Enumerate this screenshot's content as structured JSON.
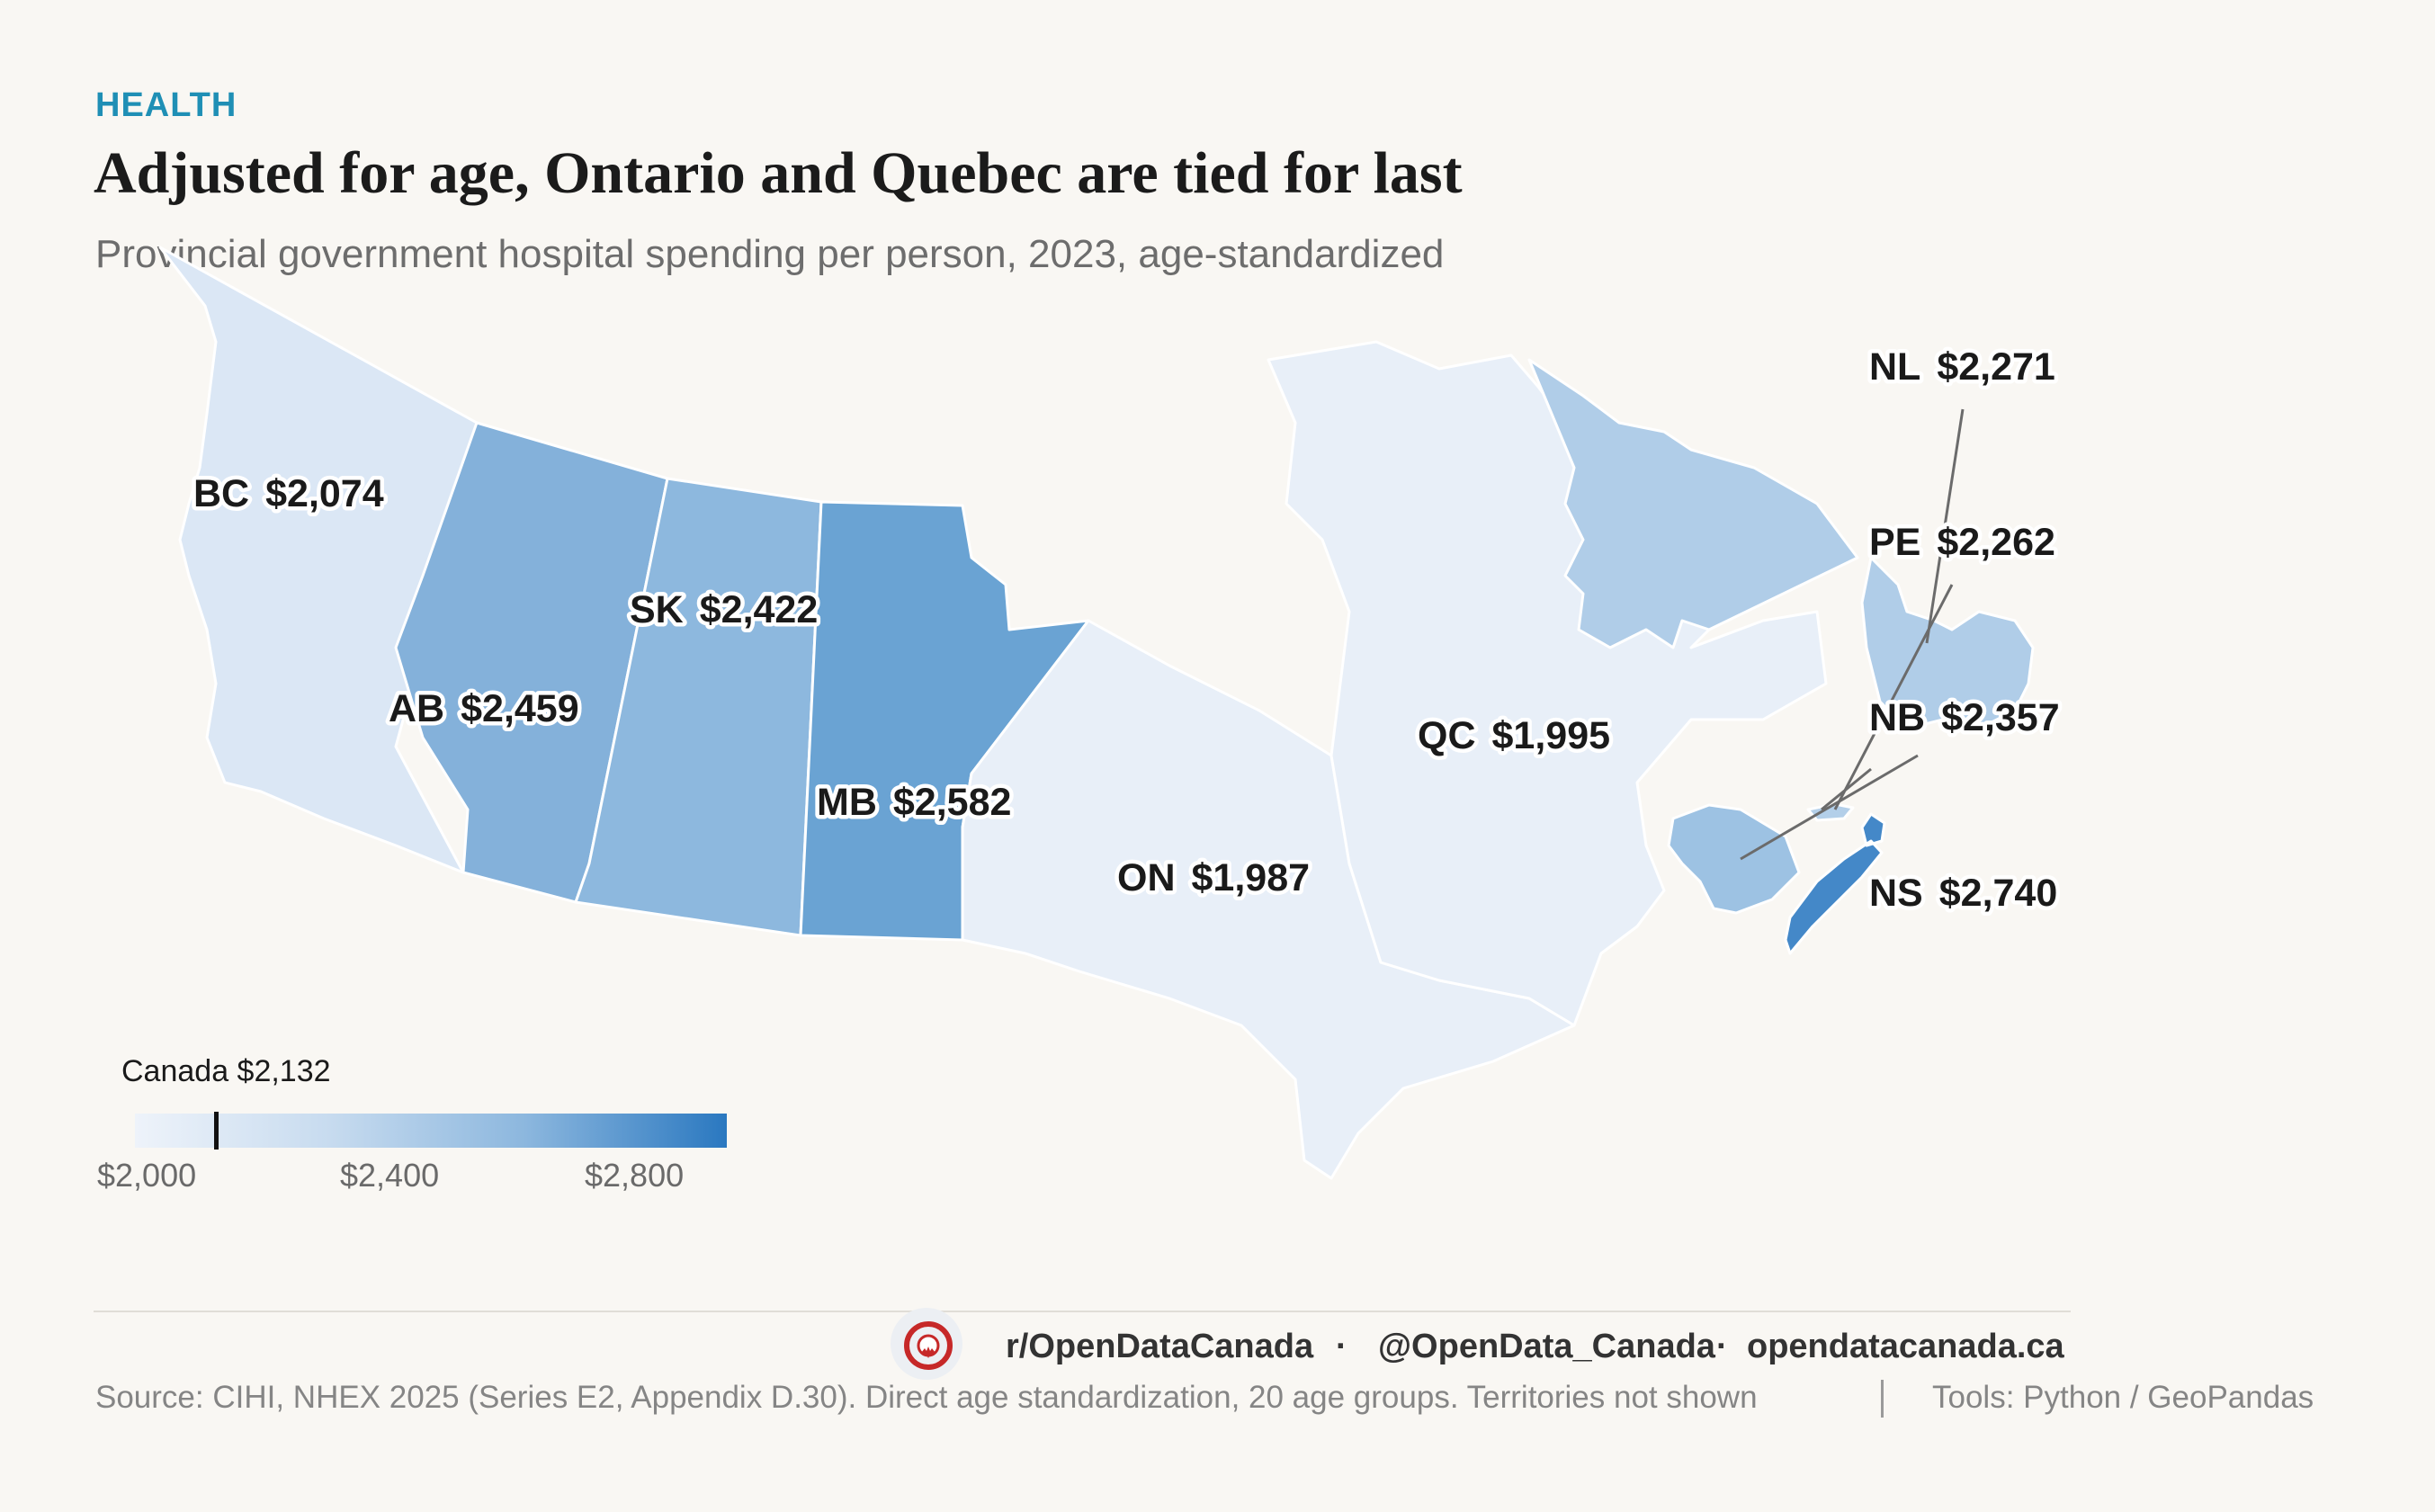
{
  "header": {
    "kicker": "HEALTH",
    "title": "Adjusted for age, Ontario and Quebec are tied for last",
    "subtitle": "Provincial government hospital spending per person, 2023, age-standardized"
  },
  "map": {
    "metric": "Provincial government hospital spending per person, 2023, age-standardized",
    "regions": [
      {
        "code": "BC",
        "value_label": "$2,074",
        "value": 2074,
        "color": "#dbe7f5"
      },
      {
        "code": "AB",
        "value_label": "$2,459",
        "value": 2459,
        "color": "#84b1da"
      },
      {
        "code": "SK",
        "value_label": "$2,422",
        "value": 2422,
        "color": "#8db8de"
      },
      {
        "code": "MB",
        "value_label": "$2,582",
        "value": 2582,
        "color": "#6aa3d3"
      },
      {
        "code": "ON",
        "value_label": "$1,987",
        "value": 1987,
        "color": "#e8eff8"
      },
      {
        "code": "QC",
        "value_label": "$1,995",
        "value": 1995,
        "color": "#e8eff8"
      },
      {
        "code": "NL",
        "value_label": "$2,271",
        "value": 2271,
        "color": "#b0cde8"
      },
      {
        "code": "PE",
        "value_label": "$2,262",
        "value": 2262,
        "color": "#b3cfe9"
      },
      {
        "code": "NB",
        "value_label": "$2,357",
        "value": 2357,
        "color": "#9dc2e3"
      },
      {
        "code": "NS",
        "value_label": "$2,740",
        "value": 2740,
        "color": "#4488c8"
      }
    ]
  },
  "legend": {
    "title": "Canada $2,132",
    "national_value": 2132,
    "range": [
      2000,
      2960
    ],
    "ticks": [
      "$2,000",
      "$2,400",
      "$2,800"
    ]
  },
  "footer": {
    "reddit": "r/OpenDataCanada",
    "twitter": "@OpenData_Canada",
    "website": "opendatacanada.ca",
    "separator": "·",
    "source": "Source: CIHI, NHEX 2025 (Series E2, Appendix D.30). Direct age standardization, 20 age groups. Territories not shown",
    "tools": "Tools: Python / GeoPandas"
  }
}
